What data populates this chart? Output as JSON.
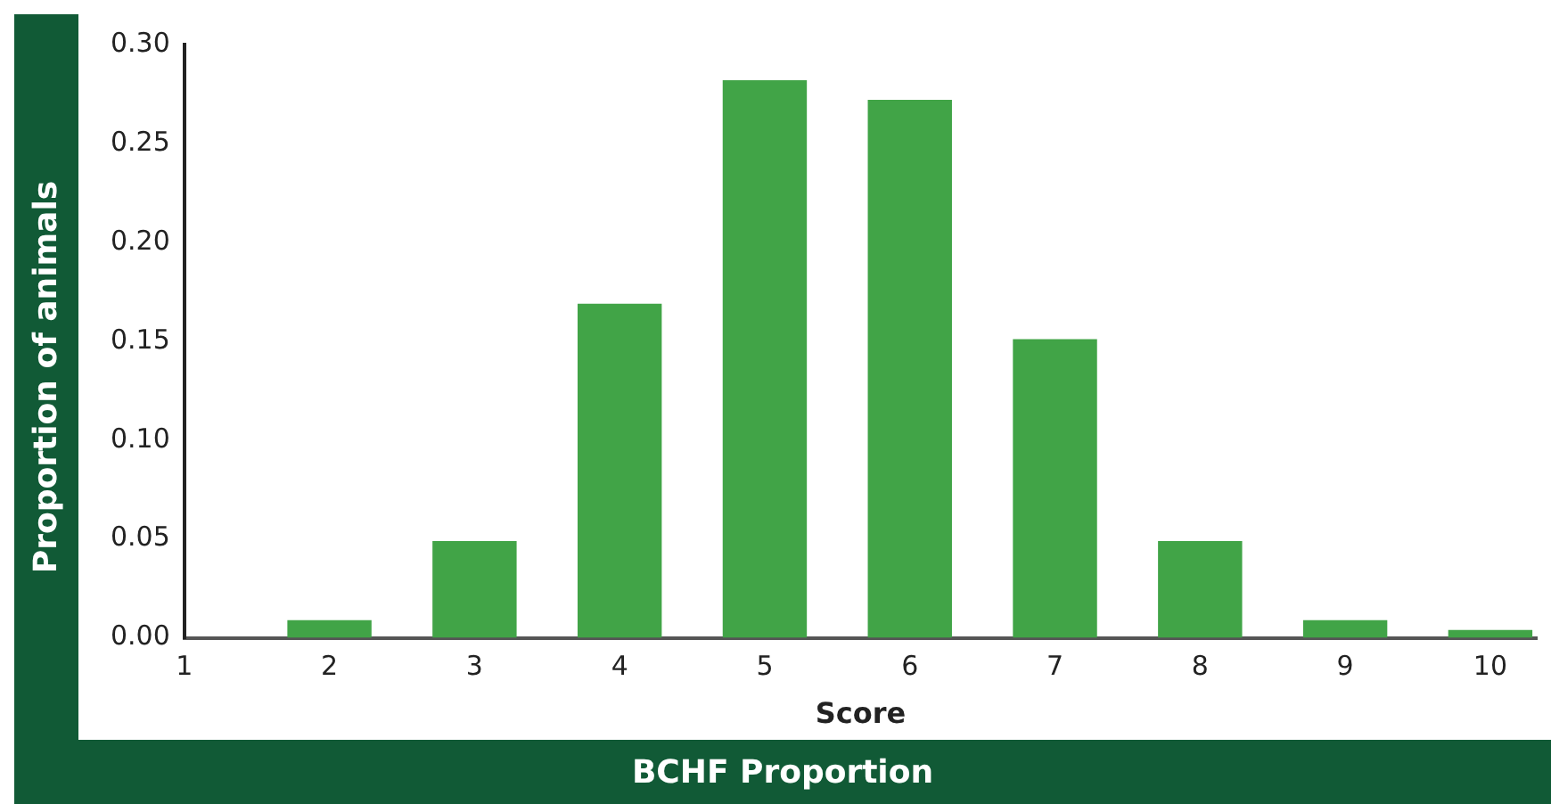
{
  "chart_data": {
    "type": "bar",
    "title": "BCHF Proportion",
    "xlabel": "Score",
    "ylabel": "Proportion of animals",
    "x": [
      2,
      3,
      4,
      5,
      6,
      7,
      8,
      9,
      10
    ],
    "values": [
      0.009,
      0.049,
      0.169,
      0.282,
      0.272,
      0.151,
      0.049,
      0.009,
      0.004
    ],
    "color": "#41a447",
    "xlim": [
      1,
      10.32
    ],
    "xticks": [
      1,
      2,
      3,
      4,
      5,
      6,
      7,
      8,
      9,
      10
    ],
    "ylim": [
      0,
      0.3
    ],
    "yticks": [
      {
        "value": 0,
        "label": "0.00"
      },
      {
        "value": 0.05,
        "label": "0.05"
      },
      {
        "value": 0.1,
        "label": "0.10"
      },
      {
        "value": 0.15,
        "label": "0.15"
      },
      {
        "value": 0.2,
        "label": "0.20"
      },
      {
        "value": 0.25,
        "label": "0.25"
      },
      {
        "value": 0.3,
        "label": "0.30"
      }
    ],
    "grid": false,
    "legend": false
  }
}
